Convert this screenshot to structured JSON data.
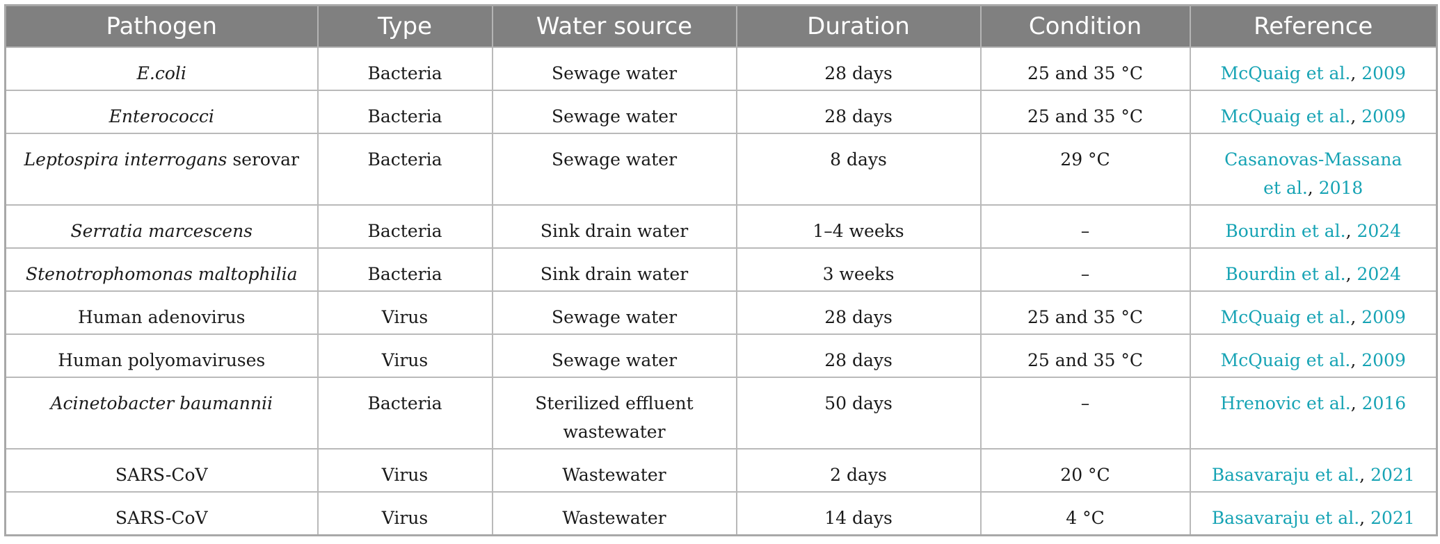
{
  "headers": [
    "Pathogen",
    "Type",
    "Water source",
    "Duration",
    "Condition",
    "Reference"
  ],
  "rows": [
    {
      "pathogen_italic": "E.coli",
      "pathogen_plain": "",
      "type": "Bacteria",
      "water_source": "Sewage water",
      "duration": "28 days",
      "condition": "25 and 35 °C",
      "ref_author": "McQuaig et al.",
      "ref_sep": ", ",
      "ref_year": "2009",
      "ref_author_line2": ""
    },
    {
      "pathogen_italic": "Enterococci",
      "pathogen_plain": "",
      "type": "Bacteria",
      "water_source": "Sewage water",
      "duration": "28 days",
      "condition": "25 and 35 °C",
      "ref_author": "McQuaig et al.",
      "ref_sep": ", ",
      "ref_year": "2009",
      "ref_author_line2": ""
    },
    {
      "pathogen_italic": "Leptospira interrogans",
      "pathogen_plain": " serovar",
      "type": "Bacteria",
      "water_source": "Sewage water",
      "duration": "8 days",
      "condition": "29 °C",
      "ref_author": "Casanovas-Massana",
      "ref_sep": ", ",
      "ref_year": "2018",
      "ref_author_line2": "et al."
    },
    {
      "pathogen_italic": "Serratia marcescens",
      "pathogen_plain": "",
      "type": "Bacteria",
      "water_source": "Sink drain water",
      "duration": "1–4 weeks",
      "condition": "–",
      "ref_author": "Bourdin et al.",
      "ref_sep": ", ",
      "ref_year": "2024",
      "ref_author_line2": ""
    },
    {
      "pathogen_italic": "Stenotrophomonas maltophilia",
      "pathogen_plain": "",
      "type": "Bacteria",
      "water_source": "Sink drain water",
      "duration": "3 weeks",
      "condition": "–",
      "ref_author": "Bourdin et al.",
      "ref_sep": ", ",
      "ref_year": "2024",
      "ref_author_line2": ""
    },
    {
      "pathogen_italic": "",
      "pathogen_plain": "Human adenovirus",
      "type": "Virus",
      "water_source": "Sewage water",
      "duration": "28 days",
      "condition": "25 and 35 °C",
      "ref_author": "McQuaig et al.",
      "ref_sep": ", ",
      "ref_year": "2009",
      "ref_author_line2": ""
    },
    {
      "pathogen_italic": "",
      "pathogen_plain": "Human polyomaviruses",
      "type": "Virus",
      "water_source": "Sewage water",
      "duration": "28 days",
      "condition": "25 and 35 °C",
      "ref_author": "McQuaig et al.",
      "ref_sep": ", ",
      "ref_year": "2009",
      "ref_author_line2": ""
    },
    {
      "pathogen_italic": "Acinetobacter baumannii",
      "pathogen_plain": "",
      "type": "Bacteria",
      "water_source": "Sterilized effluent wastewater",
      "duration": "50 days",
      "condition": "–",
      "ref_author": "Hrenovic et al.",
      "ref_sep": ", ",
      "ref_year": "2016",
      "ref_author_line2": ""
    },
    {
      "pathogen_italic": "",
      "pathogen_plain": "SARS-CoV",
      "type": "Virus",
      "water_source": "Wastewater",
      "duration": "2 days",
      "condition": "20 °C",
      "ref_author": "Basavaraju et al.",
      "ref_sep": ", ",
      "ref_year": "2021",
      "ref_author_line2": ""
    },
    {
      "pathogen_italic": "",
      "pathogen_plain": "SARS-CoV",
      "type": "Virus",
      "water_source": "Wastewater",
      "duration": "14 days",
      "condition": "4 °C",
      "ref_author": "Basavaraju et al.",
      "ref_sep": ", ",
      "ref_year": "2021",
      "ref_author_line2": ""
    }
  ],
  "colors": {
    "header_bg": "#808080",
    "header_text": "#ffffff",
    "link": "#16a3b4",
    "grid": "#b9b9b9"
  }
}
